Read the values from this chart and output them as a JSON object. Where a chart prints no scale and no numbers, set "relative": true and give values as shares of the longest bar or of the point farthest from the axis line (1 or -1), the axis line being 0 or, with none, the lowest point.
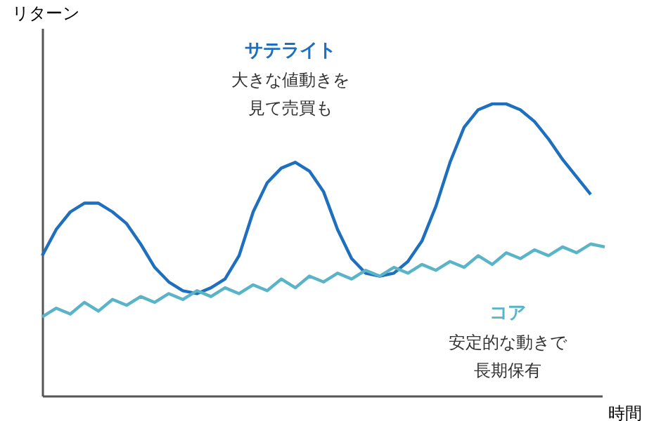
{
  "chart_data": {
    "type": "line",
    "relative": true,
    "xlabel": "時間",
    "ylabel": "リターン",
    "categories": [
      null,
      null,
      null,
      null,
      null,
      null,
      null,
      null,
      null,
      null,
      null,
      null,
      null,
      null,
      null,
      null,
      null,
      null,
      null,
      null,
      null,
      null,
      null,
      null,
      null,
      null,
      null,
      null,
      null,
      null,
      null,
      null,
      null,
      null,
      null,
      null,
      null,
      null,
      null,
      null,
      null
    ],
    "series": [
      {
        "name": "サテライト",
        "color": "#1f6fbf",
        "values": [
          0.48,
          0.57,
          0.63,
          0.66,
          0.66,
          0.63,
          0.59,
          0.52,
          0.44,
          0.39,
          0.36,
          0.35,
          0.37,
          0.4,
          0.48,
          0.63,
          0.73,
          0.78,
          0.8,
          0.77,
          0.7,
          0.57,
          0.47,
          0.42,
          0.41,
          0.42,
          0.46,
          0.53,
          0.65,
          0.8,
          0.92,
          0.98,
          1.0,
          1.0,
          0.98,
          0.94,
          0.88,
          0.81,
          0.75,
          0.69,
          null
        ]
      },
      {
        "name": "コア",
        "color": "#5ab4c8",
        "values": [
          0.27,
          0.3,
          0.28,
          0.32,
          0.29,
          0.33,
          0.31,
          0.34,
          0.32,
          0.35,
          0.33,
          0.36,
          0.34,
          0.37,
          0.35,
          0.38,
          0.36,
          0.4,
          0.37,
          0.41,
          0.39,
          0.42,
          0.4,
          0.43,
          0.41,
          0.44,
          0.42,
          0.45,
          0.43,
          0.46,
          0.44,
          0.48,
          0.45,
          0.49,
          0.47,
          0.5,
          0.48,
          0.51,
          0.49,
          0.52,
          0.51
        ]
      }
    ],
    "annotations": [
      "大きな値動きを見て売買も",
      "安定的な動きで長期保有"
    ],
    "legend": false,
    "grid": false,
    "marker": "none",
    "line_style": "solid"
  }
}
